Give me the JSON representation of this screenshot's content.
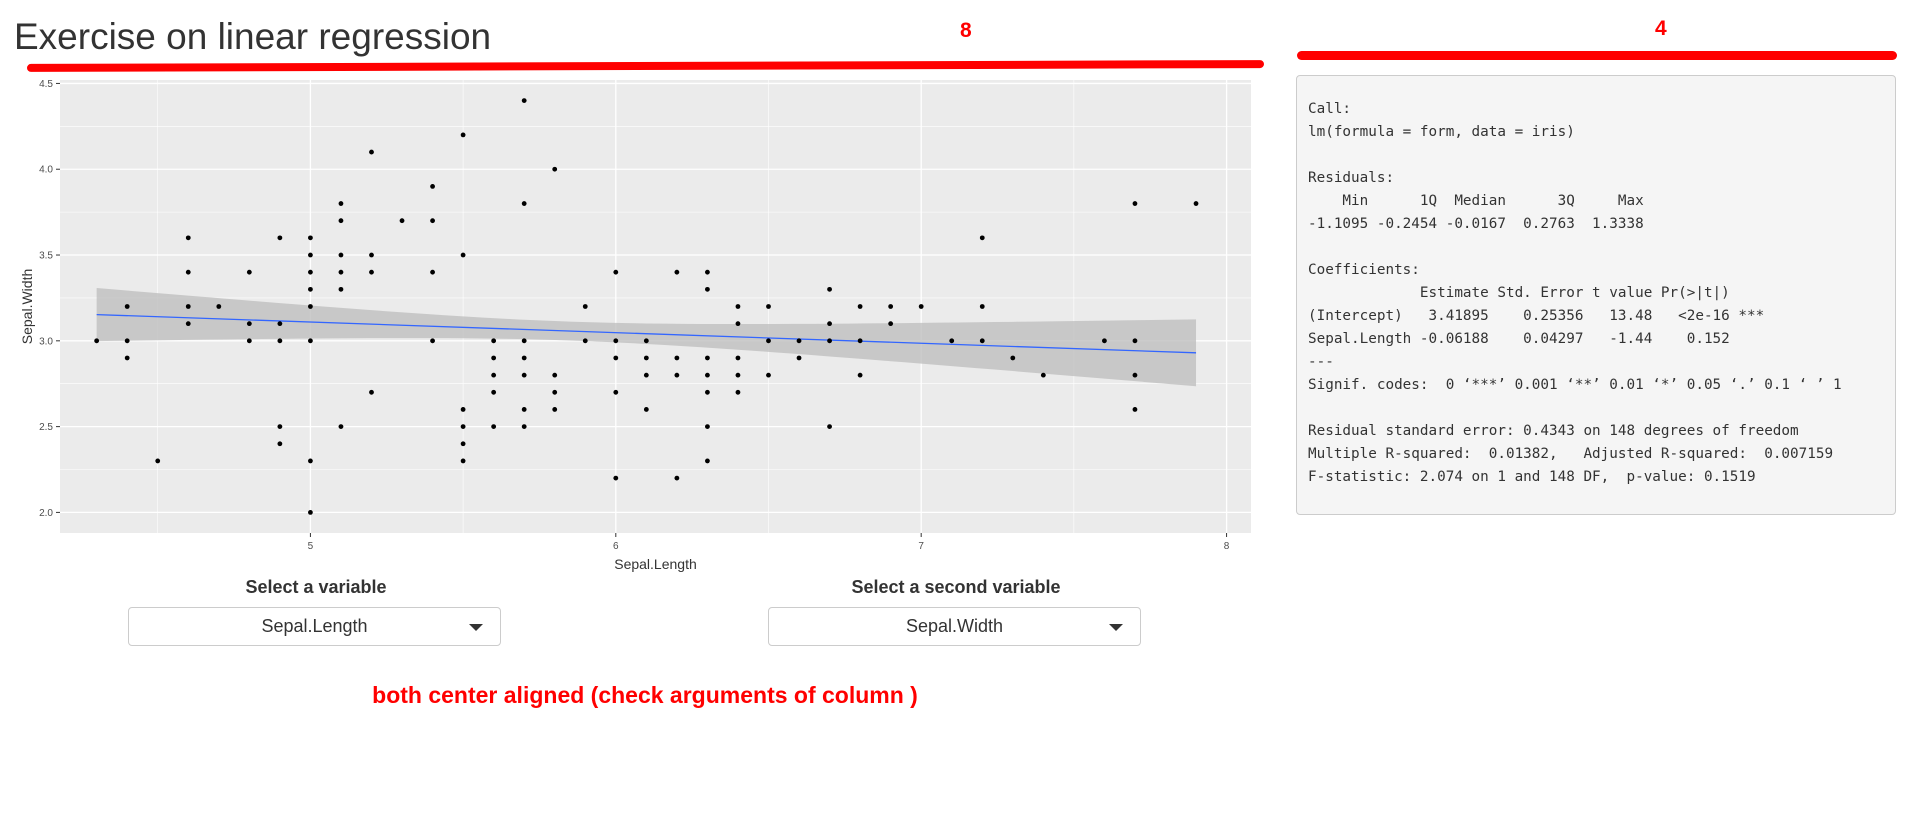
{
  "page": {
    "title": "Exercise on linear regression"
  },
  "annotations": {
    "left_width": "8",
    "right_width": "4",
    "note": "both center aligned (check arguments of column )",
    "color": "#ff0000"
  },
  "inputs": {
    "var1": {
      "label": "Select a variable",
      "value": "Sepal.Length"
    },
    "var2": {
      "label": "Select a second variable",
      "value": "Sepal.Width"
    }
  },
  "summary_lines": [
    "Call:",
    "lm(formula = form, data = iris)",
    "",
    "Residuals:",
    "    Min      1Q  Median      3Q     Max ",
    "-1.1095 -0.2454 -0.0167  0.2763  1.3338 ",
    "",
    "Coefficients:",
    "             Estimate Std. Error t value Pr(>|t|)    ",
    "(Intercept)   3.41895    0.25356   13.48   <2e-16 ***",
    "Sepal.Length -0.06188    0.04297   -1.44    0.152    ",
    "---",
    "Signif. codes:  0 ‘***’ 0.001 ‘**’ 0.01 ‘*’ 0.05 ‘.’ 0.1 ‘ ’ 1",
    "",
    "Residual standard error: 0.4343 on 148 degrees of freedom",
    "Multiple R-squared:  0.01382,\tAdjusted R-squared:  0.007159 ",
    "F-statistic: 2.074 on 1 and 148 DF,  p-value: 0.1519"
  ],
  "chart_data": {
    "type": "scatter",
    "title": "",
    "xlabel": "Sepal.Length",
    "ylabel": "Sepal.Width",
    "xlim": [
      4.18,
      8.08
    ],
    "ylim": [
      1.88,
      4.52
    ],
    "x_ticks": [
      "5",
      "6",
      "7",
      "8"
    ],
    "y_ticks": [
      "2.0",
      "2.5",
      "3.0",
      "3.5",
      "4.0",
      "4.5"
    ],
    "grid": true,
    "panel_color": "#ebebeb",
    "point_color": "#000000",
    "line_color": "#3366ff",
    "ribbon_color": "#bfbfbf",
    "smooth": {
      "method": "lm",
      "x_range": [
        4.3,
        7.9
      ],
      "intercept": 3.41895,
      "slope": -0.06188,
      "band_at_xmin": [
        2.99,
        3.3
      ],
      "band_at_center": [
        3.0,
        3.11
      ],
      "band_at_xmax": [
        2.74,
        3.13
      ]
    },
    "points": [
      [
        4.3,
        3.0
      ],
      [
        4.4,
        2.9
      ],
      [
        4.4,
        3.0
      ],
      [
        4.4,
        3.2
      ],
      [
        4.5,
        2.3
      ],
      [
        4.6,
        3.1
      ],
      [
        4.6,
        3.2
      ],
      [
        4.6,
        3.4
      ],
      [
        4.6,
        3.6
      ],
      [
        4.7,
        3.2
      ],
      [
        4.8,
        3.0
      ],
      [
        4.8,
        3.1
      ],
      [
        4.8,
        3.4
      ],
      [
        4.9,
        2.4
      ],
      [
        4.9,
        2.5
      ],
      [
        4.9,
        3.0
      ],
      [
        4.9,
        3.1
      ],
      [
        4.9,
        3.6
      ],
      [
        5.0,
        2.0
      ],
      [
        5.0,
        2.3
      ],
      [
        5.0,
        3.0
      ],
      [
        5.0,
        3.2
      ],
      [
        5.0,
        3.3
      ],
      [
        5.0,
        3.4
      ],
      [
        5.0,
        3.5
      ],
      [
        5.0,
        3.6
      ],
      [
        5.1,
        2.5
      ],
      [
        5.1,
        3.3
      ],
      [
        5.1,
        3.4
      ],
      [
        5.1,
        3.5
      ],
      [
        5.1,
        3.7
      ],
      [
        5.1,
        3.8
      ],
      [
        5.2,
        2.7
      ],
      [
        5.2,
        3.4
      ],
      [
        5.2,
        3.5
      ],
      [
        5.2,
        4.1
      ],
      [
        5.3,
        3.7
      ],
      [
        5.4,
        3.0
      ],
      [
        5.4,
        3.4
      ],
      [
        5.4,
        3.7
      ],
      [
        5.4,
        3.9
      ],
      [
        5.5,
        2.3
      ],
      [
        5.5,
        2.4
      ],
      [
        5.5,
        2.5
      ],
      [
        5.5,
        2.6
      ],
      [
        5.5,
        3.5
      ],
      [
        5.5,
        4.2
      ],
      [
        5.6,
        2.5
      ],
      [
        5.6,
        2.7
      ],
      [
        5.6,
        2.8
      ],
      [
        5.6,
        2.9
      ],
      [
        5.6,
        3.0
      ],
      [
        5.7,
        2.5
      ],
      [
        5.7,
        2.6
      ],
      [
        5.7,
        2.8
      ],
      [
        5.7,
        2.9
      ],
      [
        5.7,
        3.0
      ],
      [
        5.7,
        3.8
      ],
      [
        5.7,
        4.4
      ],
      [
        5.8,
        2.6
      ],
      [
        5.8,
        2.7
      ],
      [
        5.8,
        2.8
      ],
      [
        5.8,
        4.0
      ],
      [
        5.9,
        3.0
      ],
      [
        5.9,
        3.2
      ],
      [
        6.0,
        2.2
      ],
      [
        6.0,
        2.7
      ],
      [
        6.0,
        2.9
      ],
      [
        6.0,
        3.0
      ],
      [
        6.0,
        3.4
      ],
      [
        6.1,
        2.6
      ],
      [
        6.1,
        2.8
      ],
      [
        6.1,
        2.9
      ],
      [
        6.1,
        3.0
      ],
      [
        6.2,
        2.2
      ],
      [
        6.2,
        2.8
      ],
      [
        6.2,
        2.9
      ],
      [
        6.2,
        3.4
      ],
      [
        6.3,
        2.3
      ],
      [
        6.3,
        2.5
      ],
      [
        6.3,
        2.7
      ],
      [
        6.3,
        2.8
      ],
      [
        6.3,
        2.9
      ],
      [
        6.3,
        3.3
      ],
      [
        6.3,
        3.4
      ],
      [
        6.4,
        2.7
      ],
      [
        6.4,
        2.8
      ],
      [
        6.4,
        2.9
      ],
      [
        6.4,
        3.1
      ],
      [
        6.4,
        3.2
      ],
      [
        6.5,
        2.8
      ],
      [
        6.5,
        3.0
      ],
      [
        6.5,
        3.2
      ],
      [
        6.6,
        2.9
      ],
      [
        6.6,
        3.0
      ],
      [
        6.7,
        2.5
      ],
      [
        6.7,
        3.0
      ],
      [
        6.7,
        3.1
      ],
      [
        6.7,
        3.3
      ],
      [
        6.8,
        2.8
      ],
      [
        6.8,
        3.0
      ],
      [
        6.8,
        3.2
      ],
      [
        6.9,
        3.1
      ],
      [
        6.9,
        3.2
      ],
      [
        7.0,
        3.2
      ],
      [
        7.1,
        3.0
      ],
      [
        7.2,
        3.0
      ],
      [
        7.2,
        3.2
      ],
      [
        7.2,
        3.6
      ],
      [
        7.3,
        2.9
      ],
      [
        7.4,
        2.8
      ],
      [
        7.6,
        3.0
      ],
      [
        7.7,
        2.6
      ],
      [
        7.7,
        2.8
      ],
      [
        7.7,
        3.0
      ],
      [
        7.7,
        3.8
      ],
      [
        7.9,
        3.8
      ]
    ]
  }
}
